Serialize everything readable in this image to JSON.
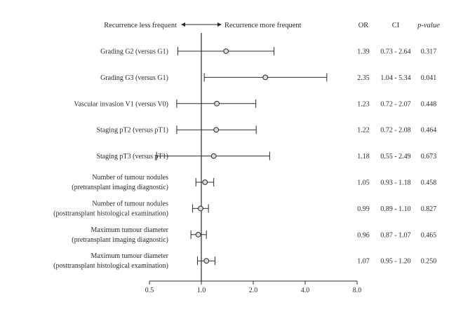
{
  "chart_data": {
    "type": "forest",
    "direction_left": "Recurrence less frequent",
    "direction_right": "Recurrence more frequent",
    "columns": {
      "or": "OR",
      "ci": "CI",
      "p": "p-value"
    },
    "x_ticks": [
      {
        "value": 0.5,
        "label": "0.5"
      },
      {
        "value": 1.0,
        "label": "1.0"
      },
      {
        "value": 2.0,
        "label": "2.0"
      },
      {
        "value": 4.0,
        "label": "4.0"
      },
      {
        "value": 8.0,
        "label": "8.0"
      }
    ],
    "x_scale": "log",
    "xlim": [
      0.5,
      8.0
    ],
    "reference_line": 1.0,
    "rows": [
      {
        "label": [
          "Grading G2 (versus G1)"
        ],
        "or": 1.39,
        "lo": 0.73,
        "hi": 2.64,
        "or_text": "1.39",
        "ci_text": "0.73 - 2.64",
        "p_text": "0.317"
      },
      {
        "label": [
          "Grading G3 (versus G1)"
        ],
        "or": 2.35,
        "lo": 1.04,
        "hi": 5.34,
        "or_text": "2.35",
        "ci_text": "1.04 - 5.34",
        "p_text": "0.041"
      },
      {
        "label": [
          "Vascular invasion V1 (versus V0)"
        ],
        "or": 1.23,
        "lo": 0.72,
        "hi": 2.07,
        "or_text": "1.23",
        "ci_text": "0.72 - 2.07",
        "p_text": "0.448"
      },
      {
        "label": [
          "Staging pT2 (versus pT1)"
        ],
        "or": 1.22,
        "lo": 0.72,
        "hi": 2.08,
        "or_text": "1.22",
        "ci_text": "0.72 - 2.08",
        "p_text": "0.464"
      },
      {
        "label": [
          "Staging pT3 (versus pT1)"
        ],
        "or": 1.18,
        "lo": 0.55,
        "hi": 2.49,
        "or_text": "1.18",
        "ci_text": "0.55 - 2.49",
        "p_text": "0.673"
      },
      {
        "label": [
          "Number of tumour nodules",
          "(pretransplant imaging diagnostic)"
        ],
        "or": 1.05,
        "lo": 0.93,
        "hi": 1.18,
        "or_text": "1.05",
        "ci_text": "0.93 - 1.18",
        "p_text": "0.458"
      },
      {
        "label": [
          "Number of tumour nodules",
          "(posttransplant histological examination)"
        ],
        "or": 0.99,
        "lo": 0.89,
        "hi": 1.1,
        "or_text": "0.99",
        "ci_text": "0.89 - 1.10",
        "p_text": "0.827"
      },
      {
        "label": [
          "Maximum tumour diameter",
          "(pretransplant imaging diagnostic)"
        ],
        "or": 0.96,
        "lo": 0.87,
        "hi": 1.07,
        "or_text": "0.96",
        "ci_text": "0.87 - 1.07",
        "p_text": "0.465"
      },
      {
        "label": [
          "Maximum tumour diameter",
          "(posttransplant histological examination)"
        ],
        "or": 1.07,
        "lo": 0.95,
        "hi": 1.2,
        "or_text": "1.07",
        "ci_text": "0.95 - 1.20",
        "p_text": "0.250"
      }
    ]
  }
}
